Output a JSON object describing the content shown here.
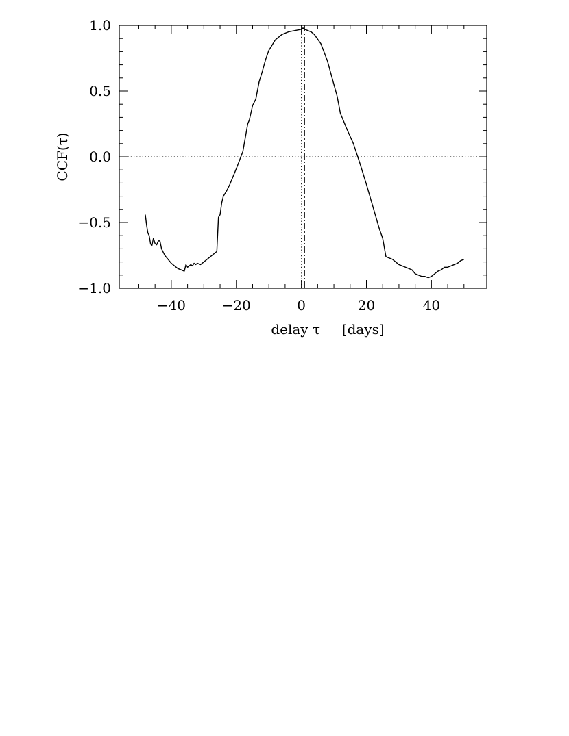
{
  "chart_data": {
    "type": "line",
    "xlabel": "delay τ     [days]",
    "ylabel": "CCF(τ)",
    "xlim": [
      -56,
      57
    ],
    "ylim": [
      -1.0,
      1.0
    ],
    "x_ticks": [
      -40,
      -20,
      0,
      20,
      40
    ],
    "x_tick_labels": [
      "−40",
      "−20",
      "0",
      "20",
      "40"
    ],
    "y_ticks": [
      -1.0,
      -0.5,
      0.0,
      0.5,
      1.0
    ],
    "y_tick_labels": [
      "−1.0",
      "−0.5",
      "0.0",
      "0.5",
      "1.0"
    ],
    "grid": false,
    "legend": "none",
    "reference_lines": [
      {
        "orientation": "horizontal",
        "value": 0.0,
        "style": "dotted"
      },
      {
        "orientation": "vertical",
        "value": 0.0,
        "style": "dotted"
      },
      {
        "orientation": "vertical",
        "value": 1.0,
        "style": "dash-dot"
      }
    ],
    "series": [
      {
        "style": "solid",
        "color": "#000000",
        "x": [
          -48.0,
          -47.6,
          -47.2,
          -46.8,
          -46.4,
          -46.0,
          -45.5,
          -45.0,
          -44.5,
          -44.0,
          -43.5,
          -43.0,
          -42.0,
          -41.0,
          -40.0,
          -38.0,
          -36.0,
          -35.5,
          -35.0,
          -34.0,
          -33.5,
          -33.0,
          -32.5,
          -32.0,
          -31.0,
          -30.0,
          -28.0,
          -26.0,
          -25.5,
          -25.0,
          -24.5,
          -24.0,
          -23.0,
          -22.0,
          -20.0,
          -18.0,
          -16.5,
          -16.0,
          -15.0,
          -14.0,
          -13.0,
          -12.0,
          -11.0,
          -10.0,
          -8.0,
          -6.0,
          -4.0,
          -2.0,
          0.0,
          0.5,
          1.0,
          2.0,
          3.0,
          4.0,
          6.0,
          8.0,
          10.0,
          11.0,
          12.0,
          14.0,
          16.0,
          18.0,
          20.0,
          22.0,
          24.0,
          25.0,
          26.0,
          28.0,
          30.0,
          32.0,
          34.0,
          35.0,
          36.0,
          37.0,
          38.0,
          39.0,
          40.0,
          41.0,
          42.0,
          43.0,
          44.0,
          45.0,
          46.0,
          47.0,
          48.0,
          49.0,
          50.0
        ],
        "y": [
          -0.44,
          -0.52,
          -0.58,
          -0.6,
          -0.66,
          -0.68,
          -0.62,
          -0.66,
          -0.67,
          -0.64,
          -0.64,
          -0.7,
          -0.75,
          -0.78,
          -0.81,
          -0.85,
          -0.87,
          -0.82,
          -0.84,
          -0.82,
          -0.83,
          -0.81,
          -0.82,
          -0.81,
          -0.82,
          -0.8,
          -0.76,
          -0.72,
          -0.46,
          -0.44,
          -0.35,
          -0.3,
          -0.26,
          -0.21,
          -0.09,
          0.04,
          0.25,
          0.28,
          0.39,
          0.44,
          0.57,
          0.65,
          0.74,
          0.81,
          0.89,
          0.93,
          0.95,
          0.96,
          0.97,
          0.98,
          0.97,
          0.96,
          0.95,
          0.93,
          0.86,
          0.73,
          0.55,
          0.46,
          0.33,
          0.21,
          0.1,
          -0.05,
          -0.21,
          -0.38,
          -0.55,
          -0.62,
          -0.76,
          -0.78,
          -0.82,
          -0.84,
          -0.86,
          -0.89,
          -0.9,
          -0.91,
          -0.91,
          -0.92,
          -0.91,
          -0.89,
          -0.87,
          -0.86,
          -0.84,
          -0.84,
          -0.83,
          -0.82,
          -0.81,
          -0.79,
          -0.78
        ]
      }
    ]
  }
}
